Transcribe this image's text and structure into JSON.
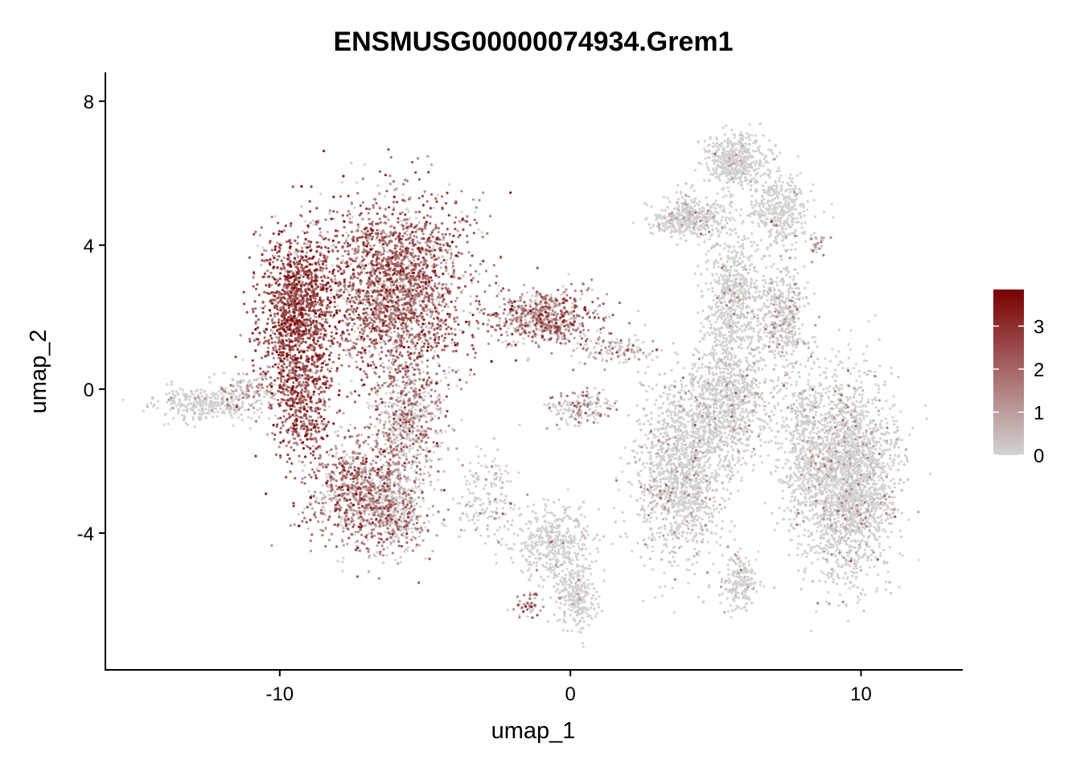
{
  "chart_data": {
    "type": "scatter",
    "title": "ENSMUSG00000074934.Grem1",
    "xlabel": "umap_1",
    "ylabel": "umap_2",
    "xlim": [
      -16.0,
      13.5
    ],
    "ylim": [
      -7.8,
      8.8
    ],
    "x_ticks": [
      -10,
      0,
      10
    ],
    "x_tick_labels": [
      "-10",
      "0",
      "10"
    ],
    "y_ticks": [
      -4,
      0,
      4,
      8
    ],
    "y_tick_labels": [
      "-4",
      "0",
      "4",
      "8"
    ],
    "grid": false,
    "legend": {
      "position": "right",
      "kind": "colorbar",
      "range": [
        0,
        3.85
      ],
      "ticks": [
        0,
        1,
        2,
        3
      ],
      "tick_labels": [
        "0",
        "1",
        "2",
        "3"
      ],
      "color_low": "#D3D3D3",
      "color_high": "#7A0000"
    },
    "clusters": [
      {
        "cx": -12.7,
        "cy": -0.4,
        "rx": 1.4,
        "ry": 0.45,
        "n": 260,
        "expr": 0.25
      },
      {
        "cx": -10.9,
        "cy": -0.1,
        "rx": 1.0,
        "ry": 0.55,
        "n": 180,
        "expr": 0.9
      },
      {
        "cx": -9.4,
        "cy": 2.1,
        "rx": 1.2,
        "ry": 2.2,
        "n": 1400,
        "expr": 2.3
      },
      {
        "cx": -9.2,
        "cy": -0.4,
        "rx": 0.9,
        "ry": 1.3,
        "n": 420,
        "expr": 2.0
      },
      {
        "cx": -6.0,
        "cy": 2.8,
        "rx": 2.2,
        "ry": 2.3,
        "n": 2200,
        "expr": 1.8
      },
      {
        "cx": -5.6,
        "cy": -0.9,
        "rx": 1.2,
        "ry": 1.6,
        "n": 650,
        "expr": 1.2
      },
      {
        "cx": -7.2,
        "cy": -2.9,
        "rx": 1.7,
        "ry": 1.4,
        "n": 1000,
        "expr": 1.5
      },
      {
        "cx": -5.9,
        "cy": -3.5,
        "rx": 1.0,
        "ry": 0.9,
        "n": 300,
        "expr": 1.2
      },
      {
        "cx": -0.9,
        "cy": 2.0,
        "rx": 1.7,
        "ry": 0.75,
        "n": 650,
        "expr": 1.5
      },
      {
        "cx": 1.6,
        "cy": 1.1,
        "rx": 1.1,
        "ry": 0.35,
        "n": 130,
        "expr": 0.8
      },
      {
        "cx": 0.4,
        "cy": -0.5,
        "rx": 0.9,
        "ry": 0.45,
        "n": 170,
        "expr": 1.0
      },
      {
        "cx": -2.8,
        "cy": -3.0,
        "rx": 1.0,
        "ry": 1.1,
        "n": 170,
        "expr": 0.3
      },
      {
        "cx": -0.6,
        "cy": -4.3,
        "rx": 1.2,
        "ry": 0.9,
        "n": 420,
        "expr": 0.1
      },
      {
        "cx": 0.2,
        "cy": -5.8,
        "rx": 0.6,
        "ry": 0.8,
        "n": 260,
        "expr": 0.1
      },
      {
        "cx": -1.4,
        "cy": -6.0,
        "rx": 0.5,
        "ry": 0.35,
        "n": 50,
        "expr": 1.5
      },
      {
        "cx": 3.8,
        "cy": -2.4,
        "rx": 1.4,
        "ry": 2.2,
        "n": 1300,
        "expr": 0.3
      },
      {
        "cx": 5.3,
        "cy": -0.4,
        "rx": 1.4,
        "ry": 1.5,
        "n": 900,
        "expr": 0.3
      },
      {
        "cx": 5.6,
        "cy": 2.4,
        "rx": 0.9,
        "ry": 1.6,
        "n": 650,
        "expr": 0.15
      },
      {
        "cx": 7.3,
        "cy": 2.0,
        "rx": 0.8,
        "ry": 1.5,
        "n": 420,
        "expr": 0.55
      },
      {
        "cx": 5.7,
        "cy": 6.3,
        "rx": 1.0,
        "ry": 0.65,
        "n": 500,
        "expr": 0.1
      },
      {
        "cx": 4.2,
        "cy": 4.8,
        "rx": 1.2,
        "ry": 0.55,
        "n": 380,
        "expr": 0.25
      },
      {
        "cx": 7.2,
        "cy": 5.0,
        "rx": 0.9,
        "ry": 0.9,
        "n": 380,
        "expr": 0.1
      },
      {
        "cx": 9.6,
        "cy": -2.5,
        "rx": 1.4,
        "ry": 2.4,
        "n": 2300,
        "expr": 0.3
      },
      {
        "cx": 8.0,
        "cy": -1.6,
        "rx": 0.8,
        "ry": 2.4,
        "n": 500,
        "expr": 0.15
      },
      {
        "cx": 5.8,
        "cy": -5.4,
        "rx": 0.55,
        "ry": 0.7,
        "n": 200,
        "expr": 0.1
      },
      {
        "cx": 3.4,
        "cy": 4.6,
        "rx": 0.6,
        "ry": 0.3,
        "n": 70,
        "expr": 0.4
      },
      {
        "cx": 8.6,
        "cy": 4.0,
        "rx": 0.3,
        "ry": 0.3,
        "n": 30,
        "expr": 1.2
      }
    ]
  }
}
